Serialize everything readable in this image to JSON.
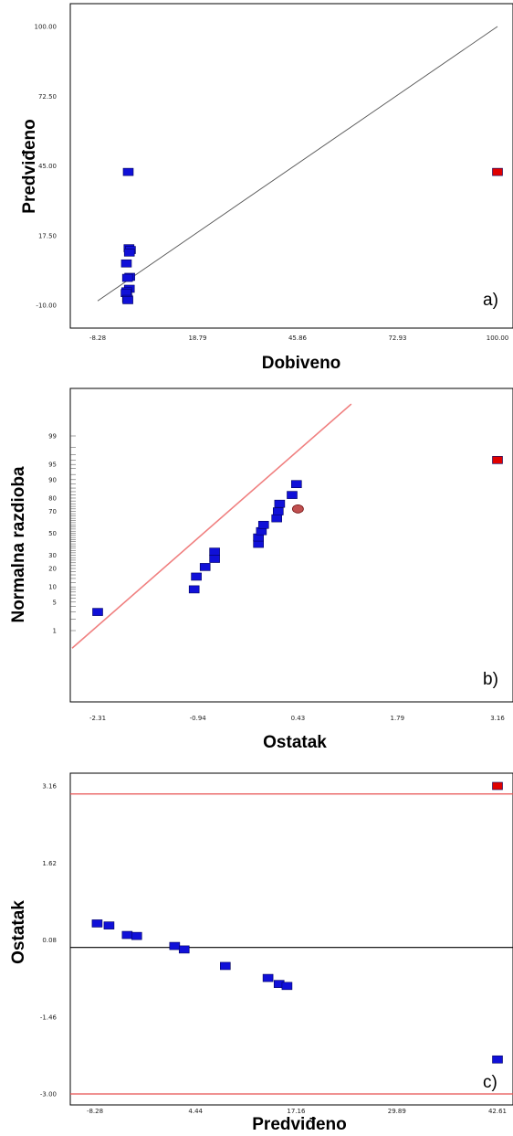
{
  "colors": {
    "point": "#1010d8",
    "point_edge": "#000060",
    "outlier": "#e00000",
    "ref_line_a": "#555555",
    "ref_line_b": "#f08080",
    "limit_line": "#e85050",
    "zero_line": "#000000",
    "highlight_marker": "#c05050"
  },
  "chart_data": [
    {
      "type": "scatter",
      "panel_label": "a)",
      "xlabel": "Dobiveno",
      "ylabel": "Predviđeno",
      "xlim": [
        -8.28,
        100.0
      ],
      "ylim": [
        -10.0,
        100.0
      ],
      "xticks": [
        "-8.28",
        "18.79",
        "45.86",
        "72.93",
        "100.00"
      ],
      "yticks": [
        "-10.00",
        "17.50",
        "45.00",
        "72.50",
        "100.00"
      ],
      "reference_line": {
        "from": [
          -8.28,
          -8.28
        ],
        "to": [
          100.0,
          100.0
        ]
      },
      "series": [
        {
          "values": [
            [
              0.0,
              42.61
            ],
            [
              0.2,
              12.5
            ],
            [
              0.6,
              11.8
            ],
            [
              0.3,
              10.8
            ],
            [
              -0.5,
              6.5
            ],
            [
              0.4,
              1.2
            ],
            [
              -0.2,
              0.8
            ],
            [
              0.3,
              -3.5
            ],
            [
              -0.4,
              -4.5
            ],
            [
              -0.6,
              -5.2
            ],
            [
              -0.2,
              -7.5
            ],
            [
              -0.1,
              -8.0
            ]
          ]
        },
        {
          "outlier": true,
          "values": [
            [
              100.0,
              42.61
            ]
          ]
        }
      ]
    },
    {
      "type": "scatter",
      "panel_label": "b)",
      "xlabel": "Ostatak",
      "ylabel": "Normalna razdioba",
      "xlim": [
        -2.31,
        3.16
      ],
      "ylim_probability": [
        0.3,
        99.9
      ],
      "xticks": [
        "-2.31",
        "-0.94",
        "0.43",
        "1.79",
        "3.16"
      ],
      "yticks": [
        "1",
        "5",
        "10",
        "20",
        "30",
        "50",
        "70",
        "80",
        "90",
        "95",
        "99"
      ],
      "reference_line": {
        "from": [
          -2.66,
          0.3
        ],
        "to": [
          1.16,
          99.9
        ]
      },
      "series": [
        {
          "values": [
            [
              -2.31,
              3.0
            ],
            [
              -0.99,
              9.0
            ],
            [
              -0.96,
              15.0
            ],
            [
              -0.84,
              21.0
            ],
            [
              -0.71,
              27.0
            ],
            [
              -0.71,
              33.0
            ],
            [
              -0.11,
              40.0
            ],
            [
              -0.11,
              46.0
            ],
            [
              -0.07,
              52.0
            ],
            [
              -0.04,
              58.0
            ],
            [
              0.14,
              64.0
            ],
            [
              0.16,
              70.0
            ],
            [
              0.18,
              76.0
            ],
            [
              0.35,
              82.0
            ],
            [
              0.41,
              88.0
            ]
          ]
        },
        {
          "outlier": true,
          "values": [
            [
              3.16,
              96.0
            ]
          ]
        },
        {
          "highlight": true,
          "values": [
            [
              0.43,
              72.0
            ]
          ]
        }
      ]
    },
    {
      "type": "scatter",
      "panel_label": "c)",
      "xlabel": "Predviđeno",
      "ylabel": "Ostatak",
      "xlim": [
        -8.28,
        42.61
      ],
      "ylim": [
        -3.0,
        3.16
      ],
      "xticks": [
        "-8.28",
        "4.44",
        "17.16",
        "29.89",
        "42.61"
      ],
      "yticks": [
        "-3.00",
        "-1.46",
        "0.08",
        "1.62",
        "3.16"
      ],
      "reference_lines": {
        "zero": -0.07,
        "upper": 3.0,
        "lower": -3.0
      },
      "series": [
        {
          "values": [
            [
              -8.0,
              0.41
            ],
            [
              -6.5,
              0.37
            ],
            [
              -4.2,
              0.18
            ],
            [
              -3.0,
              0.16
            ],
            [
              1.8,
              -0.04
            ],
            [
              3.0,
              -0.11
            ],
            [
              8.2,
              -0.44
            ],
            [
              13.6,
              -0.68
            ],
            [
              15.0,
              -0.8
            ],
            [
              16.0,
              -0.84
            ],
            [
              42.61,
              -2.31
            ]
          ]
        },
        {
          "outlier": true,
          "values": [
            [
              42.61,
              3.16
            ]
          ]
        }
      ]
    }
  ]
}
